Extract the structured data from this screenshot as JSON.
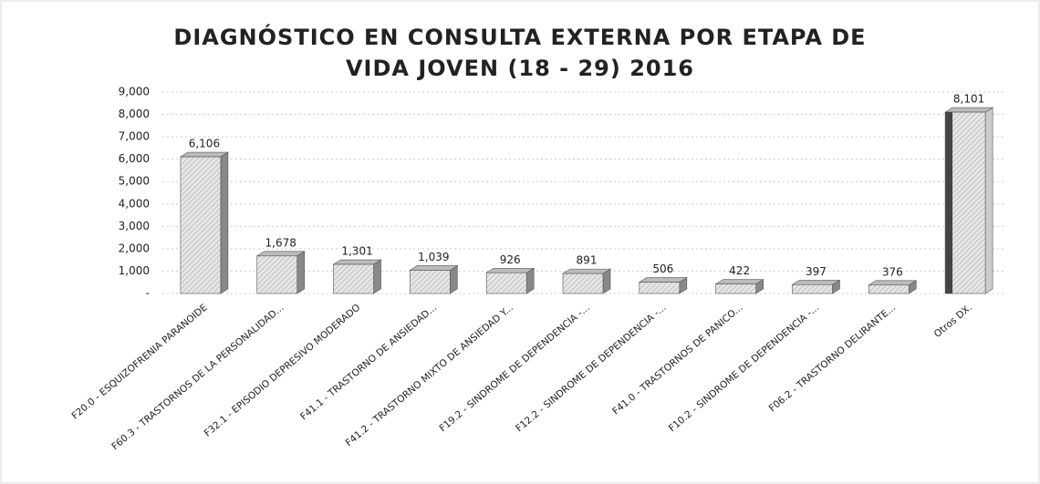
{
  "chart_data": {
    "type": "bar",
    "title": [
      "DIAGNÓSTICO EN CONSULTA EXTERNA  POR ETAPA DE",
      "VIDA  JOVEN (18 - 29) 2016"
    ],
    "categories": [
      "F20.0 - ESQUIZOFRENIA PARANOIDE",
      "F60.3 - TRASTORNOS DE LA PERSONALIDAD...",
      "F32.1 - EPISODIO DEPRESIVO MODERADO",
      "F41.1 - TRASTORNO DE ANSIEDAD...",
      "F41.2 - TRASTORNO MIXTO DE ANSIEDAD Y...",
      "F19.2 - SINDROME DE DEPENDENCIA -...",
      "F12.2 - SINDROME DE DEPENDENCIA -...",
      "F41.0 - TRASTORNOS DE PANICO...",
      "F10.2 - SINDROME DE DEPENDENCIA -...",
      "F06.2 - TRASTORNO DELIRANTE...",
      "Otros DX."
    ],
    "values": [
      6106,
      1678,
      1301,
      1039,
      926,
      891,
      506,
      422,
      397,
      376,
      8101
    ],
    "value_labels": [
      "6,106",
      "1,678",
      "1,301",
      "1,039",
      "926",
      "891",
      "506",
      "422",
      "397",
      "376",
      "8,101"
    ],
    "color": "#d9d9d9",
    "ylim": [
      0,
      9000
    ],
    "yticks": [
      {
        "value": 0,
        "label": "-"
      },
      {
        "value": 1000,
        "label": "1,000"
      },
      {
        "value": 2000,
        "label": "2,000"
      },
      {
        "value": 3000,
        "label": "3,000"
      },
      {
        "value": 4000,
        "label": "4,000"
      },
      {
        "value": 5000,
        "label": "5,000"
      },
      {
        "value": 6000,
        "label": "6,000"
      },
      {
        "value": 7000,
        "label": "7,000"
      },
      {
        "value": 8000,
        "label": "8,000"
      },
      {
        "value": 9000,
        "label": "9,000"
      }
    ],
    "grid": true
  }
}
